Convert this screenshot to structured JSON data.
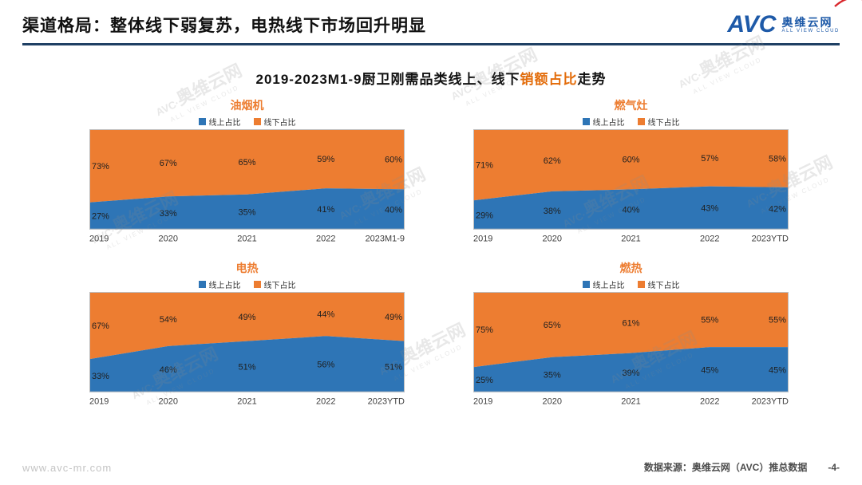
{
  "header": {
    "title": "渠道格局：整体线下弱复苏，电热线下市场回升明显",
    "logo": {
      "text": "AVC",
      "name_cn": "奥维云网",
      "name_en": "ALL VIEW CLOUD"
    }
  },
  "main_title": {
    "prefix": "2019-2023M1-9厨卫刚需品类线上、线下",
    "highlight": "销额占比",
    "suffix": "走势"
  },
  "colors": {
    "online": "#2E75B6",
    "offline": "#ED7D31",
    "chart_title": "#ED7D31",
    "highlight": "#E36C0A"
  },
  "watermark": {
    "avc": "AVC·",
    "cn": "奥维云网",
    "en": "ALL VIEW CLOUD"
  },
  "chart_data": [
    {
      "type": "area",
      "id": "range-hood",
      "title": "油烟机",
      "stacked": true,
      "ylim": [
        0,
        100
      ],
      "grid": false,
      "legend_position": "top",
      "categories": [
        "2019",
        "2020",
        "2021",
        "2022",
        "2023M1-9"
      ],
      "series": [
        {
          "name": "线上占比",
          "color": "#2E75B6",
          "values": [
            27,
            33,
            35,
            41,
            40
          ]
        },
        {
          "name": "线下占比",
          "color": "#ED7D31",
          "values": [
            73,
            67,
            65,
            59,
            60
          ]
        }
      ]
    },
    {
      "type": "area",
      "id": "gas-stove",
      "title": "燃气灶",
      "stacked": true,
      "ylim": [
        0,
        100
      ],
      "grid": false,
      "legend_position": "top",
      "categories": [
        "2019",
        "2020",
        "2021",
        "2022",
        "2023YTD"
      ],
      "series": [
        {
          "name": "线上占比",
          "color": "#2E75B6",
          "values": [
            29,
            38,
            40,
            43,
            42
          ]
        },
        {
          "name": "线下占比",
          "color": "#ED7D31",
          "values": [
            71,
            62,
            60,
            57,
            58
          ]
        }
      ]
    },
    {
      "type": "area",
      "id": "electric-water-heater",
      "title": "电热",
      "stacked": true,
      "ylim": [
        0,
        100
      ],
      "grid": false,
      "legend_position": "top",
      "categories": [
        "2019",
        "2020",
        "2021",
        "2022",
        "2023YTD"
      ],
      "series": [
        {
          "name": "线上占比",
          "color": "#2E75B6",
          "values": [
            33,
            46,
            51,
            56,
            51
          ]
        },
        {
          "name": "线下占比",
          "color": "#ED7D31",
          "values": [
            67,
            54,
            49,
            44,
            49
          ]
        }
      ]
    },
    {
      "type": "area",
      "id": "gas-water-heater",
      "title": "燃热",
      "stacked": true,
      "ylim": [
        0,
        100
      ],
      "grid": false,
      "legend_position": "top",
      "categories": [
        "2019",
        "2020",
        "2021",
        "2022",
        "2023YTD"
      ],
      "series": [
        {
          "name": "线上占比",
          "color": "#2E75B6",
          "values": [
            25,
            35,
            39,
            45,
            45
          ]
        },
        {
          "name": "线下占比",
          "color": "#ED7D31",
          "values": [
            75,
            65,
            61,
            55,
            55
          ]
        }
      ]
    }
  ],
  "footer": {
    "website": "www.avc-mr.com",
    "source": "数据来源：奥维云网（AVC）推总数据",
    "page": "-4-"
  }
}
